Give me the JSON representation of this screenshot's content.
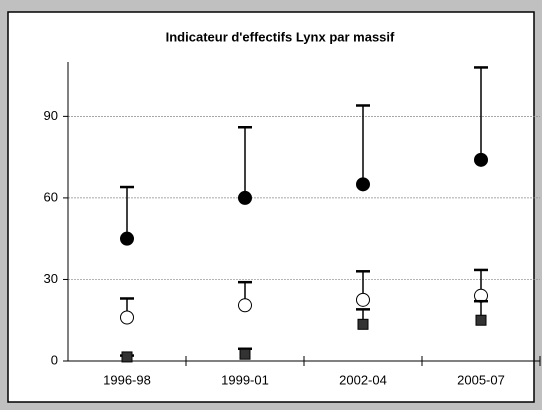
{
  "chart_data": {
    "type": "errorbar",
    "title": "Indicateur d'effectifs Lynx par massif",
    "categories": [
      "1996-98",
      "1999-01",
      "2002-04",
      "2005-07"
    ],
    "series": [
      {
        "color": "#000000",
        "fill": "#000000",
        "marker": "circle",
        "values": [
          45,
          60,
          65,
          74
        ],
        "errors": [
          19,
          26,
          29,
          34
        ]
      },
      {
        "color": "#000000",
        "fill": "#ffffff",
        "marker": "circle",
        "values": [
          16,
          20.5,
          22.5,
          24
        ],
        "errors": [
          7,
          8.5,
          10.5,
          9.5
        ]
      },
      {
        "color": "#000000",
        "fill": "#333333",
        "marker": "square",
        "values": [
          1.5,
          2.5,
          13.5,
          15
        ],
        "errors": [
          0.5,
          2,
          5.5,
          7
        ]
      }
    ],
    "ylim": [
      0,
      110
    ],
    "yticks": [
      0,
      30,
      60,
      90
    ],
    "grid": true
  }
}
